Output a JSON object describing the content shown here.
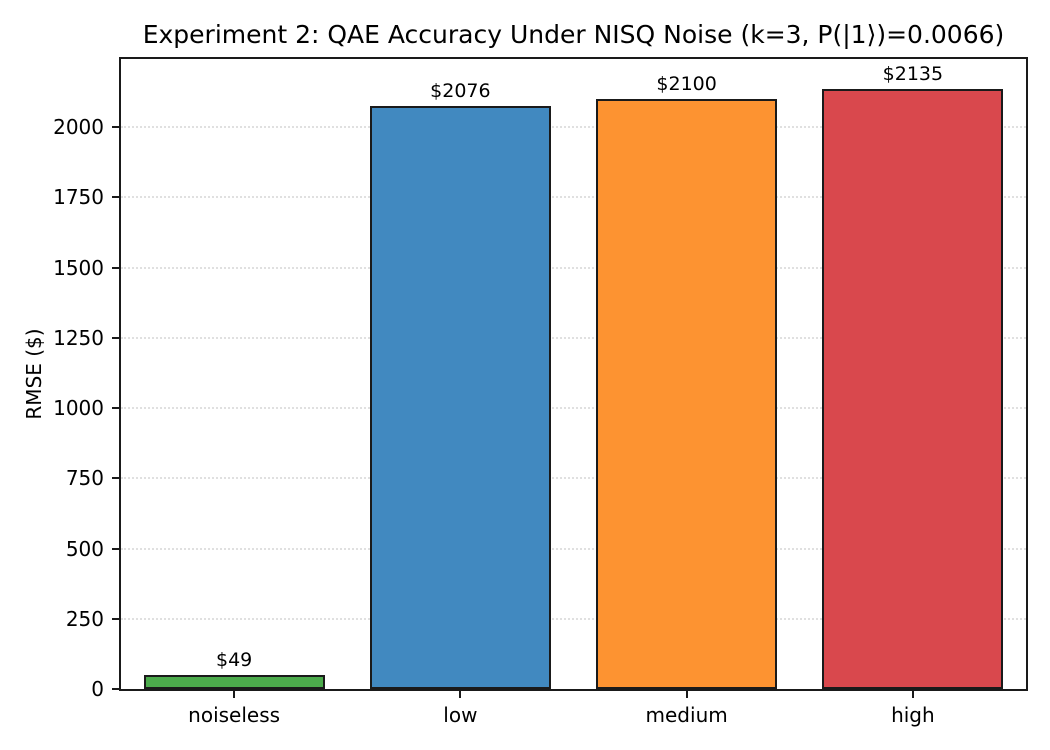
{
  "chart_data": {
    "type": "bar",
    "title": "Experiment 2: QAE Accuracy Under NISQ Noise (k=3, P(|1⟩)=0.0066)",
    "ylabel": "RMSE ($)",
    "xlabel": "",
    "categories": [
      "noiseless",
      "low",
      "medium",
      "high"
    ],
    "values": [
      49,
      2076,
      2100,
      2135
    ],
    "bar_labels": [
      "$49",
      "$2076",
      "$2100",
      "$2135"
    ],
    "bar_colors": [
      "#4cab4c",
      "#4189c0",
      "#fd9331",
      "#d9484d"
    ],
    "bar_edge_color": "#1a1a1a",
    "yticks": [
      0,
      250,
      500,
      750,
      1000,
      1250,
      1500,
      1750,
      2000
    ],
    "ylim": [
      0,
      2242
    ],
    "grid": "horizontal dotted",
    "grid_color": "#e0e0e0",
    "legend_position": "none",
    "background_color": "#ffffff"
  }
}
